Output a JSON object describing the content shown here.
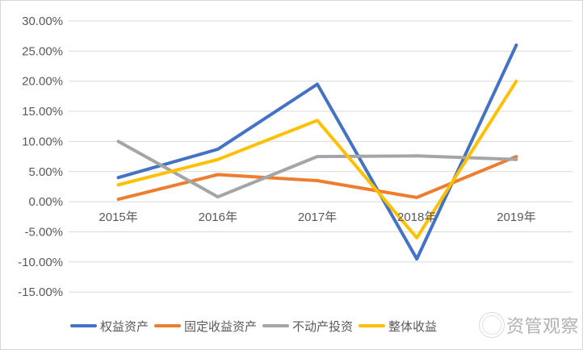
{
  "window": {
    "background": "#ffffff",
    "border_color": "#d6d6d6"
  },
  "watermark": {
    "text": "资管观察",
    "color": "#a9a9a9",
    "logo": "double-ring-circle"
  },
  "chart_data": {
    "type": "line",
    "title": "",
    "xlabel": "",
    "ylabel": "",
    "categories": [
      "2015年",
      "2016年",
      "2017年",
      "2018年",
      "2019年"
    ],
    "series": [
      {
        "name": "权益资产",
        "color": "#4472C4",
        "values": [
          4.0,
          8.7,
          19.5,
          -9.5,
          26.0
        ]
      },
      {
        "name": "固定收益资产",
        "color": "#ED7D31",
        "values": [
          0.4,
          4.5,
          3.5,
          0.7,
          7.5
        ]
      },
      {
        "name": "不动产投资",
        "color": "#A5A5A5",
        "values": [
          10.0,
          0.8,
          7.5,
          7.6,
          7.0
        ]
      },
      {
        "name": "整体收益",
        "color": "#FFC000",
        "values": [
          2.8,
          7.0,
          13.5,
          -6.0,
          20.0
        ]
      }
    ],
    "y_axis": {
      "min": -15,
      "max": 30,
      "step": 5,
      "tick_labels": [
        "30.00%",
        "25.00%",
        "20.00%",
        "15.00%",
        "10.00%",
        "5.00%",
        "0.00%",
        "-5.00%",
        "-10.00%",
        "-15.00%"
      ],
      "label_color": "#595959"
    },
    "x_axis": {
      "label_color": "#595959",
      "labels_at_zero_line": true
    },
    "grid": {
      "visible": true,
      "color": "#D9D9D9"
    },
    "legend_position": "bottom",
    "line_width": 4
  }
}
